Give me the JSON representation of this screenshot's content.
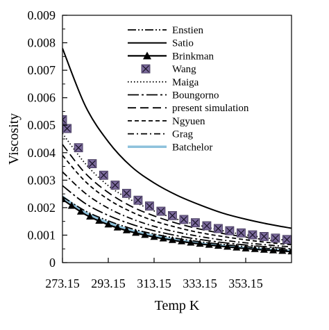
{
  "chart_data": {
    "type": "line",
    "title": "",
    "xlabel": "Temp  K",
    "ylabel": "Viscosity",
    "xlim": [
      273.15,
      373.15
    ],
    "ylim": [
      0,
      0.009
    ],
    "grid": false,
    "legend_placement": "top-right",
    "x_ticks": [
      273.15,
      293.15,
      313.15,
      333.15,
      353.15
    ],
    "x_tick_labels": [
      "273.15",
      "293.15",
      "313.15",
      "333.15",
      "353.15"
    ],
    "y_ticks": [
      0,
      0.001,
      0.002,
      0.003,
      0.004,
      0.005,
      0.006,
      0.007,
      0.008,
      0.009
    ],
    "y_tick_labels": [
      "0",
      "0.001",
      "0.002",
      "0.003",
      "0.004",
      "0.005",
      "0.006",
      "0.007",
      "0.008",
      "0.009"
    ],
    "x": [
      273.15,
      283.15,
      293.15,
      303.15,
      313.15,
      323.15,
      333.15,
      343.15,
      353.15,
      363.15,
      373.15
    ],
    "series": [
      {
        "name": "Enstien",
        "style": "dash-dot-dot",
        "color": "#000000",
        "values": [
          0.0024,
          0.00188,
          0.00152,
          0.00124,
          0.00104,
          0.00088,
          0.00076,
          0.00066,
          0.00058,
          0.00051,
          0.00045
        ]
      },
      {
        "name": "Satio",
        "style": "solid",
        "color": "#000000",
        "values": [
          0.0078,
          0.0057,
          0.0044,
          0.0035,
          0.0029,
          0.00245,
          0.0021,
          0.0018,
          0.00158,
          0.0014,
          0.00125
        ]
      },
      {
        "name": "Brinkman",
        "style": "solid-triangle",
        "color": "#000000",
        "values": [
          0.0023,
          0.00175,
          0.00138,
          0.00112,
          0.00093,
          0.00079,
          0.00068,
          0.00059,
          0.00051,
          0.00045,
          0.0004
        ]
      },
      {
        "name": "Wang",
        "style": "square-marker",
        "color": "#7b6a9c",
        "x": [
          273.15,
          275.15,
          280.15,
          286.15,
          291.15,
          296.15,
          301.15,
          306.15,
          311.15,
          316.15,
          321.15,
          326.15,
          331.15,
          336.15,
          341.15,
          346.15,
          351.15,
          356.15,
          361.15,
          366.15,
          371.15
        ],
        "values": [
          0.0052,
          0.00488,
          0.00418,
          0.0036,
          0.00318,
          0.00282,
          0.00252,
          0.00227,
          0.00206,
          0.00187,
          0.00171,
          0.00157,
          0.00145,
          0.00134,
          0.00124,
          0.00116,
          0.00108,
          0.00101,
          0.00095,
          0.00089,
          0.00084
        ]
      },
      {
        "name": "Maiga",
        "style": "dotted",
        "color": "#000000",
        "values": [
          0.0047,
          0.0036,
          0.0028,
          0.00228,
          0.00188,
          0.00158,
          0.00135,
          0.00116,
          0.00101,
          0.00089,
          0.00079
        ]
      },
      {
        "name": "Boungorno",
        "style": "long-dash-dot",
        "color": "#000000",
        "values": [
          0.0028,
          0.00215,
          0.00172,
          0.0014,
          0.00116,
          0.00098,
          0.00084,
          0.00073,
          0.00064,
          0.00057,
          0.0005
        ]
      },
      {
        "name": "present simulation",
        "style": "long-dash",
        "color": "#000000",
        "values": [
          0.0043,
          0.00325,
          0.00255,
          0.00205,
          0.0017,
          0.00143,
          0.00122,
          0.00106,
          0.00093,
          0.00082,
          0.00073
        ]
      },
      {
        "name": "Ngyuen",
        "style": "short-dash",
        "color": "#000000",
        "values": [
          0.0039,
          0.00295,
          0.0023,
          0.00185,
          0.00152,
          0.00128,
          0.00109,
          0.00095,
          0.00083,
          0.00073,
          0.00065
        ]
      },
      {
        "name": "Grag",
        "style": "dash-dot",
        "color": "#000000",
        "values": [
          0.0033,
          0.00252,
          0.00198,
          0.0016,
          0.00132,
          0.00111,
          0.00095,
          0.00082,
          0.00072,
          0.00064,
          0.00057
        ]
      },
      {
        "name": "Batchelor",
        "style": "thick-solid",
        "color": "#8ec2dc",
        "values": [
          0.0024,
          0.00182,
          0.00145,
          0.00117,
          0.00097,
          0.00082,
          0.0007,
          0.00061,
          0.00053,
          0.00047,
          0.00042
        ]
      }
    ]
  }
}
